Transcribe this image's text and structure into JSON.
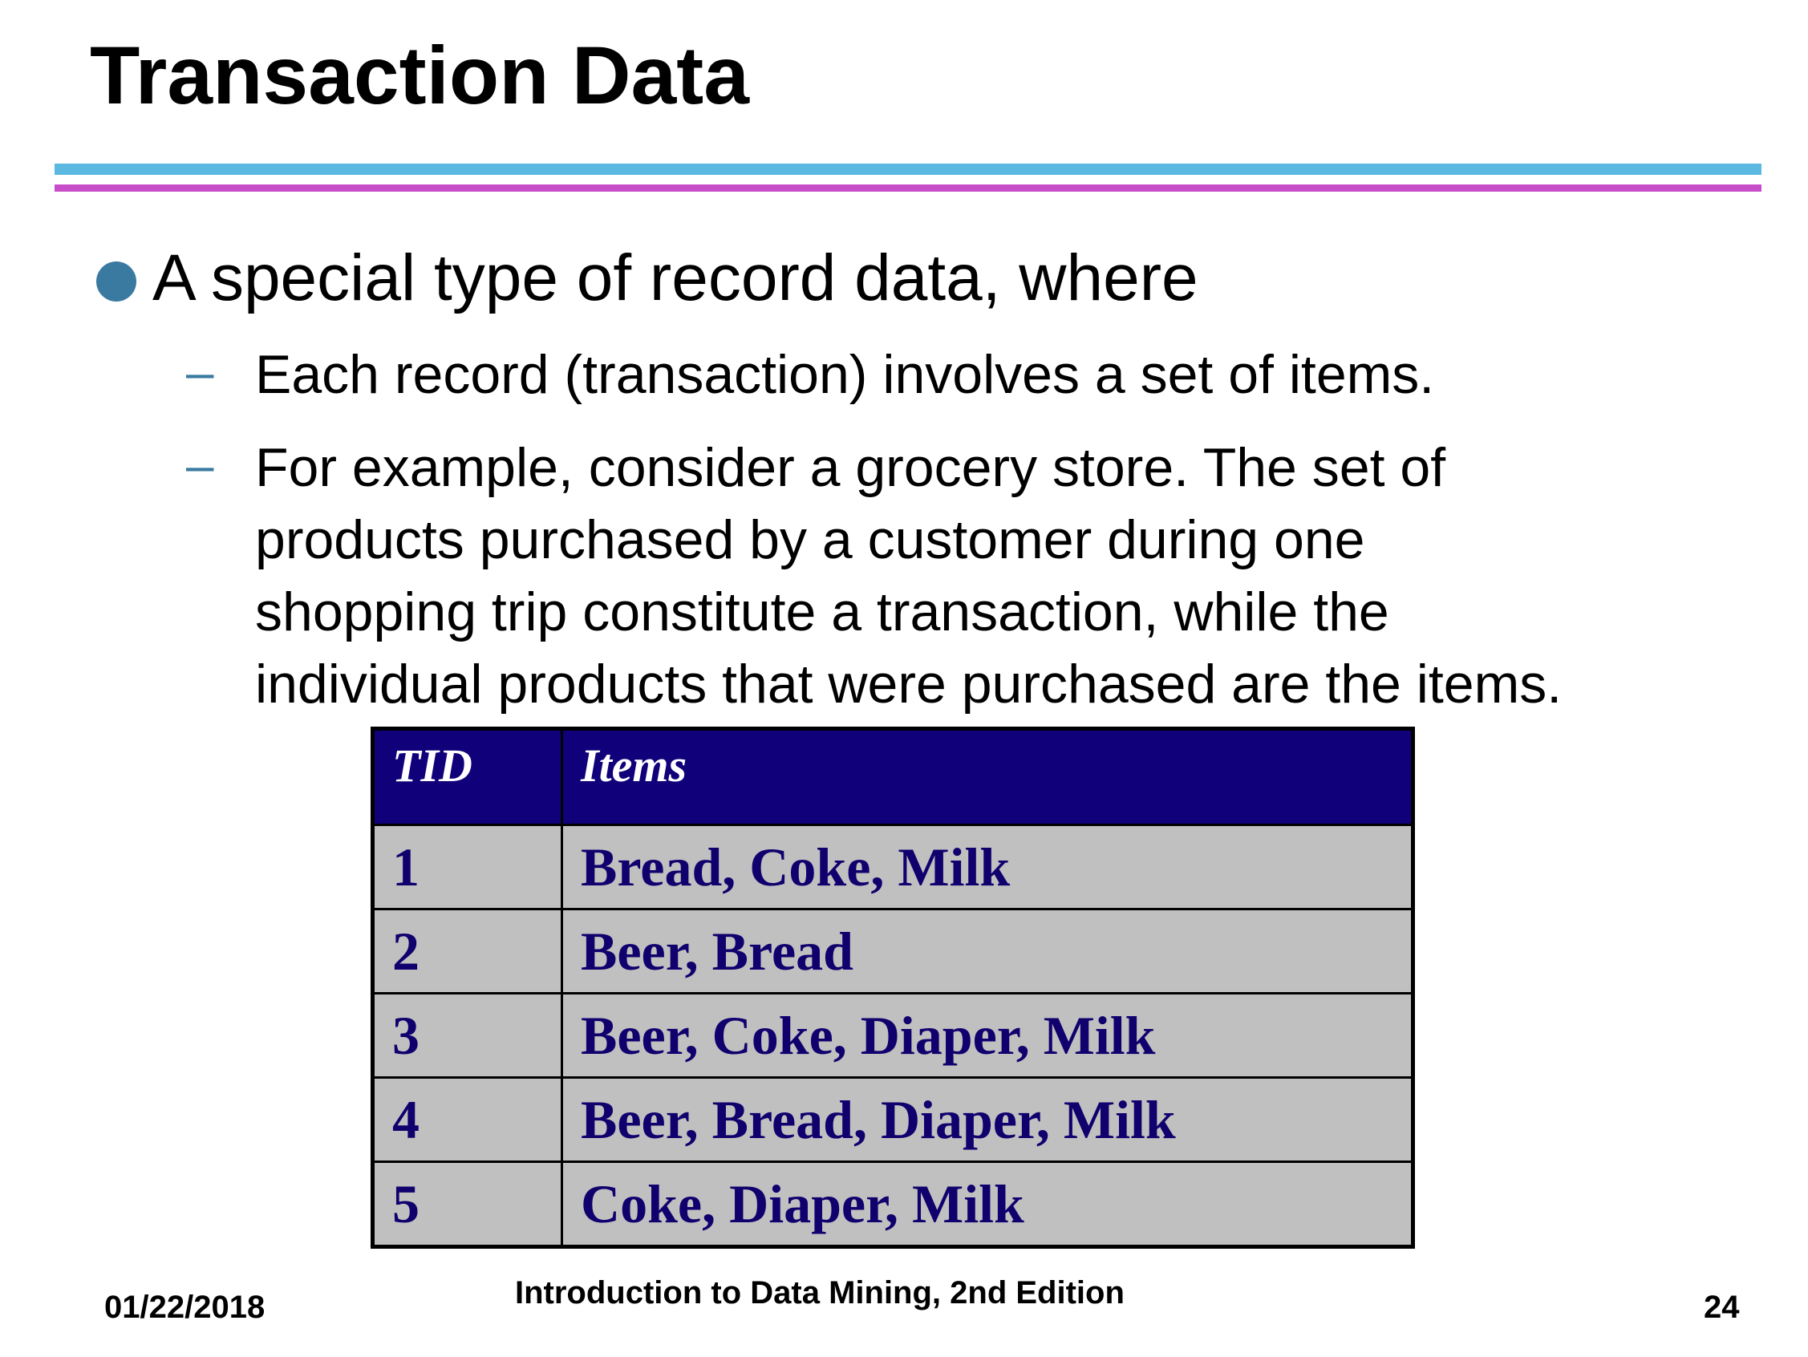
{
  "slide": {
    "title": "Transaction Data",
    "bullet": "A special type of record data, where",
    "sub_points": [
      {
        "lines": [
          "Each record (transaction) involves a set of items."
        ]
      },
      {
        "lines": [
          "For example, consider a grocery store.  The set of",
          "products purchased by a customer during one",
          "shopping trip constitute a transaction, while the",
          "individual products that were purchased are the items."
        ]
      }
    ],
    "dash_glyph": "–"
  },
  "table": {
    "headers": {
      "tid": "TID",
      "items": "Items"
    },
    "rows": [
      {
        "tid": "1",
        "items": "Bread, Coke, Milk"
      },
      {
        "tid": "2",
        "items": "Beer, Bread"
      },
      {
        "tid": "3",
        "items": "Beer, Coke, Diaper, Milk"
      },
      {
        "tid": "4",
        "items": "Beer, Bread, Diaper, Milk"
      },
      {
        "tid": "5",
        "items": "Coke, Diaper, Milk"
      }
    ]
  },
  "footer": {
    "date": "01/22/2018",
    "course": "Introduction to Data Mining, 2nd Edition",
    "page_number": "24"
  },
  "colors": {
    "rule_blue": "#5bb8e0",
    "rule_magenta": "#c74ec8",
    "bullet": "#3a7aa0",
    "table_header_bg": "#10007a",
    "table_body_bg": "#c0c0c0",
    "table_body_text": "#10006e"
  }
}
